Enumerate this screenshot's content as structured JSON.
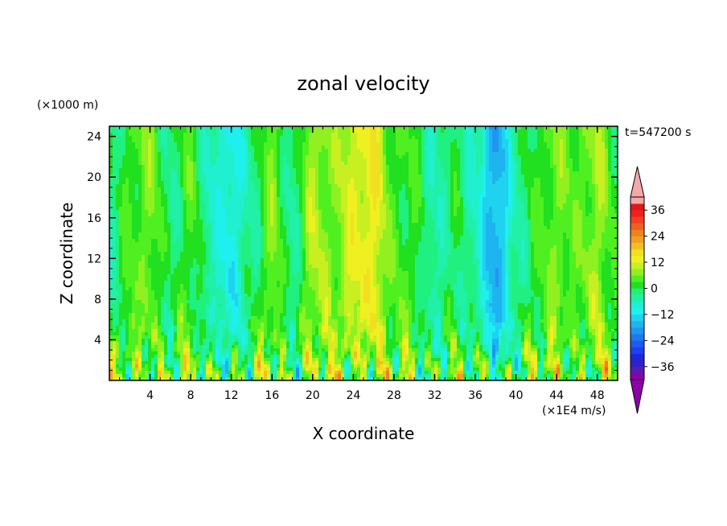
{
  "chart_data": {
    "type": "heatmap",
    "title": "zonal velocity",
    "xlabel": "X coordinate",
    "ylabel": "Z coordinate",
    "y_unit": "(×1000 m)",
    "x_unit": "(×1E4 m/s)",
    "time_label": "t=547200 s",
    "xlim": [
      0,
      50
    ],
    "ylim": [
      0,
      25
    ],
    "x_ticks": [
      4,
      8,
      12,
      16,
      20,
      24,
      28,
      32,
      36,
      40,
      44,
      48
    ],
    "y_ticks": [
      4,
      8,
      12,
      16,
      20,
      24
    ],
    "grid": false,
    "colorbar": {
      "placement": "right",
      "levels": [
        -42,
        -39,
        -36,
        -33,
        -30,
        -27,
        -24,
        -21,
        -18,
        -15,
        -12,
        -9,
        -6,
        -3,
        0,
        3,
        6,
        9,
        12,
        15,
        18,
        21,
        24,
        27,
        30,
        33,
        36,
        39,
        42
      ],
      "tick_values": [
        36,
        24,
        12,
        0,
        -12,
        -24,
        -36
      ],
      "colors": [
        "#8c00a8",
        "#5a1ab0",
        "#3020c8",
        "#1a28e0",
        "#1e40f0",
        "#1e5cf0",
        "#1e78f0",
        "#1e96f0",
        "#1eb4f0",
        "#1ed2f0",
        "#1ef0f0",
        "#20f0d0",
        "#20f0a8",
        "#20f080",
        "#20e020",
        "#50f020",
        "#90f020",
        "#c8f020",
        "#f0f020",
        "#f0e020",
        "#f0c020",
        "#f0a020",
        "#f08020",
        "#f06020",
        "#f04020",
        "#f02020",
        "#e01818",
        "#f4a8a8"
      ],
      "lower_extend_color": "#8c00a8",
      "upper_extend_color": "#f4a8a8"
    },
    "field_description_values": {
      "x_samples": [
        0,
        2,
        4,
        6,
        8,
        10,
        12,
        14,
        16,
        18,
        20,
        22,
        24,
        26,
        28,
        30,
        32,
        34,
        36,
        38,
        40,
        42,
        44,
        46,
        48,
        50
      ],
      "upper_column_values": [
        -3,
        3,
        6,
        -2,
        3,
        -6,
        -10,
        -3,
        6,
        -3,
        9,
        6,
        12,
        14,
        3,
        2,
        -5,
        0,
        -6,
        -18,
        -4,
        2,
        6,
        4,
        8,
        1
      ]
    }
  }
}
